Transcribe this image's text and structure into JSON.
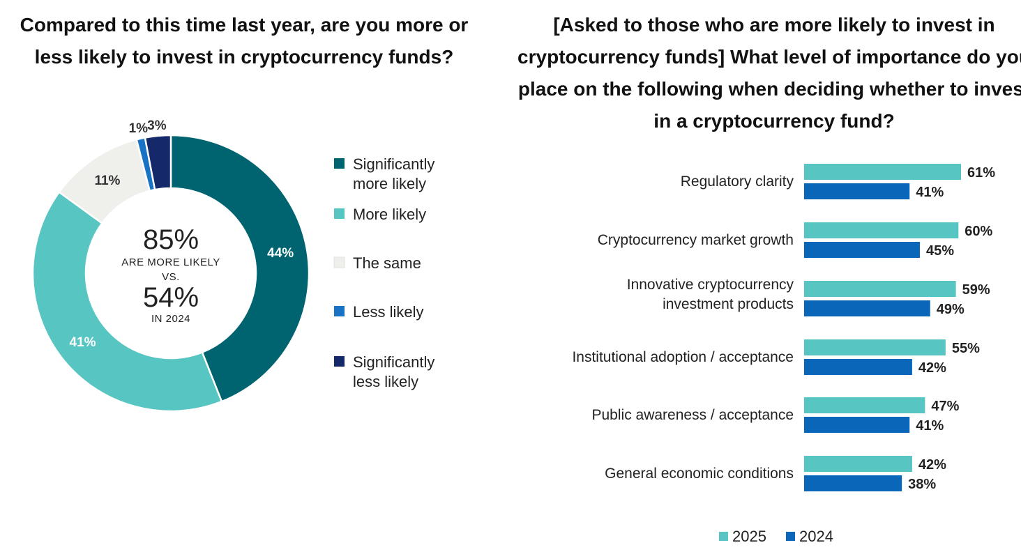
{
  "left_chart": {
    "title": "Compared to this time last year, are you more or less likely to invest in cryptocurrency funds?",
    "center": {
      "big1": "85%",
      "small1": "ARE MORE LIKELY",
      "small2": "VS.",
      "big2": "54%",
      "small3": "IN 2024"
    },
    "legend": [
      {
        "lines": [
          "Significantly",
          "more likely"
        ],
        "color": "#006470"
      },
      {
        "lines": [
          "More likely"
        ],
        "color": "#57C5C2"
      },
      {
        "lines": [
          "The same"
        ],
        "color": "#EFEFEC"
      },
      {
        "lines": [
          "Less likely"
        ],
        "color": "#1873C4"
      },
      {
        "lines": [
          "Significantly",
          "less likely"
        ],
        "color": "#14286A"
      }
    ]
  },
  "right_chart": {
    "title": "[Asked to those who are more likely to invest in cryptocurrency funds] What level of importance do you place on the following when deciding whether to invest in a cryptocurrency fund?",
    "legend": [
      {
        "label": "2025",
        "color": "#57C5C2"
      },
      {
        "label": "2024",
        "color": "#0A66B8"
      }
    ]
  },
  "chart_data": [
    {
      "type": "pie",
      "variant": "donut",
      "title": "Compared to this time last year, are you more or less likely to invest in cryptocurrency funds?",
      "categories": [
        "Significantly more likely",
        "More likely",
        "The same",
        "Less likely",
        "Significantly less likely"
      ],
      "values": [
        44,
        41,
        11,
        1,
        3
      ],
      "labels": [
        "44%",
        "41%",
        "11%",
        "1%",
        "3%"
      ],
      "colors": [
        "#006470",
        "#57C5C2",
        "#EFEFEC",
        "#1873C4",
        "#14286A"
      ],
      "legend_position": "right"
    },
    {
      "type": "bar",
      "orientation": "horizontal",
      "title": "[Asked to those who are more likely to invest in cryptocurrency funds] What level of importance do you place on the following when deciding whether to invest in a cryptocurrency fund?",
      "categories": [
        [
          "Regulatory clarity"
        ],
        [
          "Cryptocurrency market growth"
        ],
        [
          "Innovative cryptocurrency",
          "investment products"
        ],
        [
          "Institutional adoption / acceptance"
        ],
        [
          "Public awareness / acceptance"
        ],
        [
          "General economic conditions"
        ]
      ],
      "series": [
        {
          "name": "2025",
          "values": [
            61,
            60,
            59,
            55,
            47,
            42
          ],
          "labels": [
            "61%",
            "60%",
            "59%",
            "55%",
            "47%",
            "42%"
          ],
          "color": "#57C5C2"
        },
        {
          "name": "2024",
          "values": [
            41,
            45,
            49,
            42,
            41,
            38
          ],
          "labels": [
            "41%",
            "45%",
            "49%",
            "42%",
            "41%",
            "38%"
          ],
          "color": "#0A66B8"
        }
      ],
      "legend_position": "bottom",
      "grid": false
    }
  ]
}
